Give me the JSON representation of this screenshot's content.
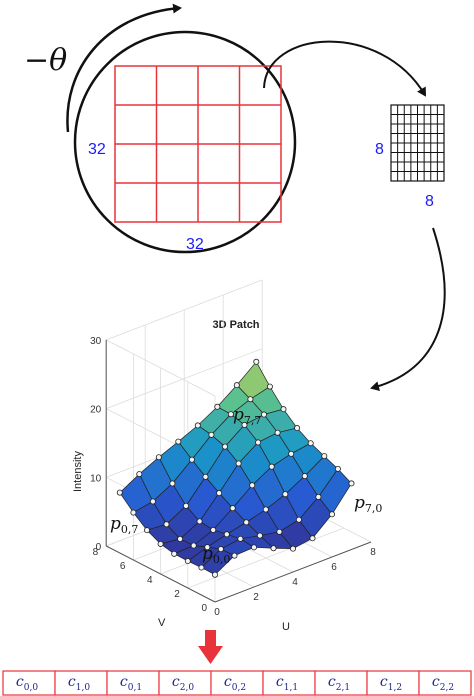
{
  "rotation": {
    "label": "−θ"
  },
  "patch_large": {
    "width_label": "32",
    "height_label": "32",
    "rows": 4,
    "cols": 4,
    "color": "#e8333a"
  },
  "patch_small": {
    "width_label": "8",
    "height_label": "8",
    "rows": 8,
    "cols": 8
  },
  "plot": {
    "title": "3D Patch",
    "zlabel": "Intensity",
    "xlabel": "U",
    "ylabel": "V",
    "z_ticks": [
      "0",
      "10",
      "20",
      "30"
    ],
    "u_ticks": [
      "0",
      "2",
      "4",
      "6",
      "8"
    ],
    "v_ticks": [
      "0",
      "2",
      "4",
      "6",
      "8"
    ],
    "zlim": [
      0,
      30
    ],
    "grid": true,
    "corners": [
      {
        "id": "p00",
        "base": "p",
        "sub": "0,0"
      },
      {
        "id": "p07",
        "base": "p",
        "sub": "0,7"
      },
      {
        "id": "p77",
        "base": "p",
        "sub": "7,7"
      },
      {
        "id": "p70",
        "base": "p",
        "sub": "7,0"
      }
    ]
  },
  "descriptor": {
    "border_color": "#e8333a",
    "arrow_color": "#e8333a",
    "cells": [
      {
        "base": "c",
        "sub": "0,0"
      },
      {
        "base": "c",
        "sub": "1,0"
      },
      {
        "base": "c",
        "sub": "0,1"
      },
      {
        "base": "c",
        "sub": "2,0"
      },
      {
        "base": "c",
        "sub": "0,2"
      },
      {
        "base": "c",
        "sub": "1,1"
      },
      {
        "base": "c",
        "sub": "2,1"
      },
      {
        "base": "c",
        "sub": "1,2"
      },
      {
        "base": "c",
        "sub": "2,2"
      }
    ]
  },
  "colors": {
    "dim_label": "#1a1aff",
    "grid_line": "#e8333a",
    "ink": "#111111",
    "math_blue": "#1f2a8a"
  }
}
